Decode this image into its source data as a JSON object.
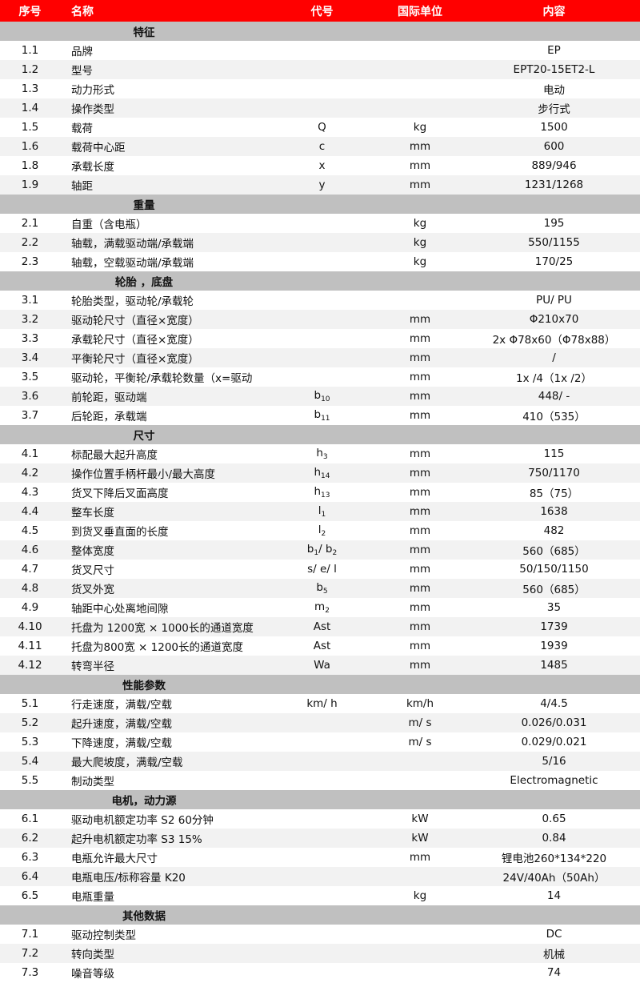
{
  "colors": {
    "header": "#ff0000",
    "section": "#c0c0c0",
    "alt_row": "#f2f2f2"
  },
  "headers": [
    "序号",
    "名称",
    "代号",
    "国际单位",
    "内容"
  ],
  "sections": [
    {
      "title": "特征",
      "rows": [
        [
          "1.1",
          "品牌",
          [],
          "",
          "EP"
        ],
        [
          "1.2",
          "型号",
          [],
          "",
          "EPT20-15ET2-L"
        ],
        [
          "1.3",
          "动力形式",
          [],
          "",
          "电动"
        ],
        [
          "1.4",
          "操作类型",
          [],
          "",
          "步行式"
        ],
        [
          "1.5",
          "载荷",
          [
            {
              "text": "Q"
            }
          ],
          "kg",
          "1500"
        ],
        [
          "1.6",
          "载荷中心距",
          [
            {
              "text": "c"
            }
          ],
          "mm",
          "600"
        ],
        [
          "1.8",
          "承载长度",
          [
            {
              "text": "x"
            }
          ],
          "mm",
          "889/946"
        ],
        [
          "1.9",
          "轴距",
          [
            {
              "text": "y"
            }
          ],
          "mm",
          "1231/1268"
        ]
      ]
    },
    {
      "title": "重量",
      "rows": [
        [
          "2.1",
          "自重（含电瓶）",
          [],
          "kg",
          "195"
        ],
        [
          "2.2",
          "轴载，满载驱动端/承载端",
          [],
          "kg",
          "550/1155"
        ],
        [
          "2.3",
          "轴载，空载驱动端/承载端",
          [],
          "kg",
          "170/25"
        ]
      ]
    },
    {
      "title": "轮胎 ，底盘",
      "rows": [
        [
          "3.1",
          "轮胎类型，驱动轮/承载轮",
          [],
          "",
          "PU/ PU"
        ],
        [
          "3.2",
          "驱动轮尺寸（直径×宽度）",
          [],
          "mm",
          "Φ210x70"
        ],
        [
          "3.3",
          "承载轮尺寸（直径×宽度）",
          [],
          "mm",
          "2x Φ78x60（Φ78x88）"
        ],
        [
          "3.4",
          "平衡轮尺寸（直径×宽度）",
          [],
          "mm",
          "/"
        ],
        [
          "3.5",
          "驱动轮，平衡轮/承载轮数量（x=驱动",
          [],
          "mm",
          "1x /4（1x /2）"
        ],
        [
          "3.6",
          "前轮距，驱动端",
          [
            {
              "text": "b",
              "sub": "10"
            }
          ],
          "mm",
          "448/ -"
        ],
        [
          "3.7",
          "后轮距，承载端",
          [
            {
              "text": "b",
              "sub": "11"
            }
          ],
          "mm",
          "410（535）"
        ]
      ]
    },
    {
      "title": "尺寸",
      "rows": [
        [
          "4.1",
          "标配最大起升高度",
          [
            {
              "text": "h",
              "sub": "3"
            }
          ],
          "mm",
          "115"
        ],
        [
          "4.2",
          "操作位置手柄杆最小/最大高度",
          [
            {
              "text": "h",
              "sub": "14"
            }
          ],
          "mm",
          "750/1170"
        ],
        [
          "4.3",
          "货叉下降后叉面高度",
          [
            {
              "text": "h",
              "sub": "13"
            }
          ],
          "mm",
          "85（75）"
        ],
        [
          "4.4",
          "整车长度",
          [
            {
              "text": "l",
              "sub": "1"
            }
          ],
          "mm",
          "1638"
        ],
        [
          "4.5",
          "到货叉垂直面的长度",
          [
            {
              "text": "l",
              "sub": "2"
            }
          ],
          "mm",
          "482"
        ],
        [
          "4.6",
          "整体宽度",
          [
            {
              "text": "b",
              "sub": "1"
            },
            {
              "text": "/ b",
              "sub": "2"
            }
          ],
          "mm",
          "560（685）"
        ],
        [
          "4.7",
          "货叉尺寸",
          [
            {
              "text": "s/ e/ l"
            }
          ],
          "mm",
          "50/150/1150"
        ],
        [
          "4.8",
          "货叉外宽",
          [
            {
              "text": "b",
              "sub": "5"
            }
          ],
          "mm",
          "560（685）"
        ],
        [
          "4.9",
          "轴距中心处离地间隙",
          [
            {
              "text": "m",
              "sub": "2"
            }
          ],
          "mm",
          "35"
        ],
        [
          "4.10",
          "托盘为 1200宽 × 1000长的通道宽度",
          [
            {
              "text": "Ast"
            }
          ],
          "mm",
          "1739"
        ],
        [
          "4.11",
          "托盘为800宽 × 1200长的通道宽度",
          [
            {
              "text": "Ast"
            }
          ],
          "mm",
          "1939"
        ],
        [
          "4.12",
          "转弯半径",
          [
            {
              "text": "Wa"
            }
          ],
          "mm",
          "1485"
        ]
      ]
    },
    {
      "title": "性能参数",
      "rows": [
        [
          "5.1",
          "行走速度，满载/空载",
          [
            {
              "text": "km/ h"
            }
          ],
          "km/h",
          "4/4.5"
        ],
        [
          "5.2",
          "起升速度，满载/空载",
          [],
          "m/ s",
          "0.026/0.031"
        ],
        [
          "5.3",
          "下降速度，满载/空载",
          [],
          "m/ s",
          "0.029/0.021"
        ],
        [
          "5.4",
          "最大爬坡度，满载/空载",
          [],
          "",
          "5/16"
        ],
        [
          "5.5",
          "制动类型",
          [],
          "",
          "Electromagnetic"
        ]
      ]
    },
    {
      "title": "电机，动力源",
      "rows": [
        [
          "6.1",
          "驱动电机额定功率 S2 60分钟",
          [],
          "kW",
          "0.65"
        ],
        [
          "6.2",
          "起升电机额定功率 S3 15%",
          [],
          "kW",
          "0.84"
        ],
        [
          "6.3",
          "电瓶允许最大尺寸",
          [],
          "mm",
          "锂电池260*134*220"
        ],
        [
          "6.4",
          "电瓶电压/标称容量 K20",
          [],
          "",
          "24V/40Ah（50Ah）"
        ],
        [
          "6.5",
          "电瓶重量",
          [],
          "kg",
          "14"
        ]
      ]
    },
    {
      "title": "其他数据",
      "rows": [
        [
          "7.1",
          "驱动控制类型",
          [],
          "",
          "DC"
        ],
        [
          "7.2",
          "转向类型",
          [],
          "",
          "机械"
        ],
        [
          "7.3",
          "噪音等级",
          [],
          "",
          "74"
        ]
      ]
    }
  ]
}
